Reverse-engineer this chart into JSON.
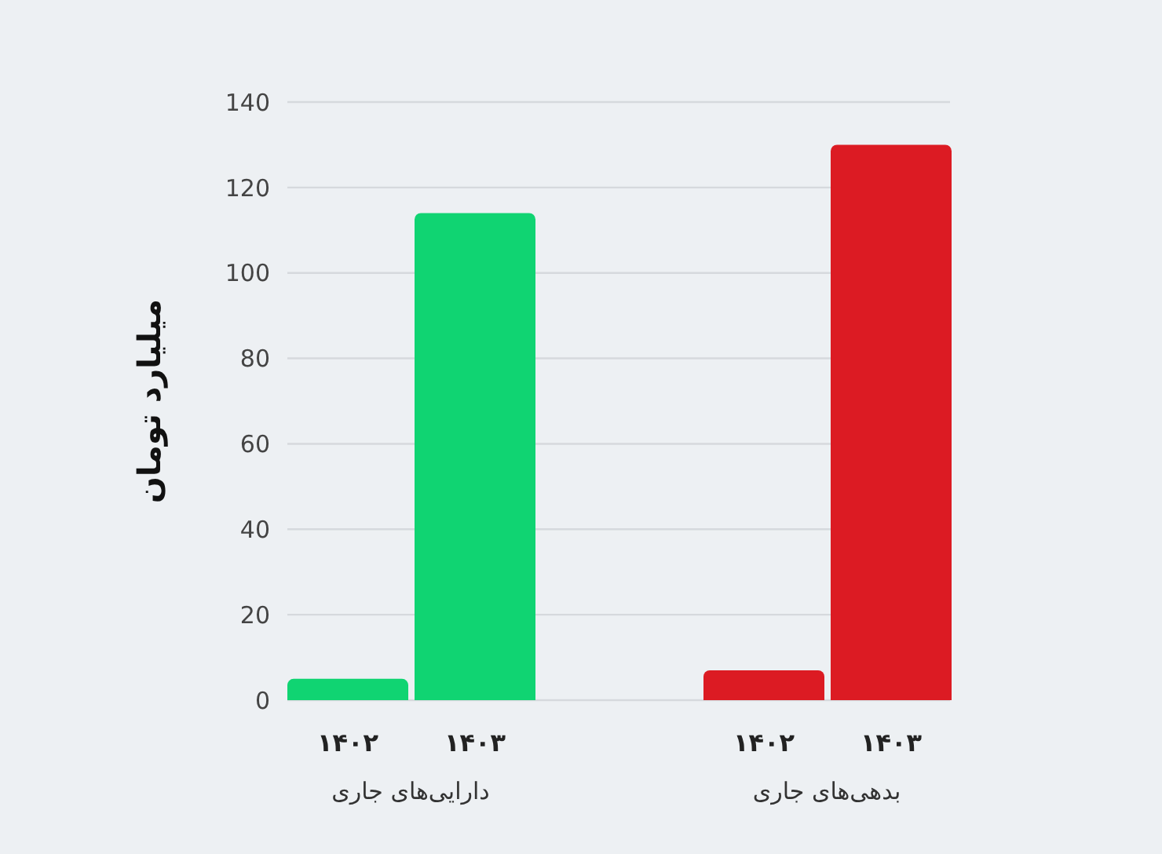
{
  "chart_data": {
    "type": "bar",
    "ylabel": "میلیارد تومان",
    "categories": [
      "دارایی‌های جاری",
      "بدهی‌های جاری"
    ],
    "series": [
      {
        "name": "۱۴۰۲",
        "colors": [
          "#10d472",
          "#dc1b23"
        ],
        "values": [
          5,
          7
        ]
      },
      {
        "name": "۱۴۰۳",
        "colors": [
          "#10d472",
          "#dc1b23"
        ],
        "values": [
          114,
          130
        ]
      }
    ],
    "ylim": [
      0,
      140
    ],
    "yticks": [
      0,
      20,
      40,
      60,
      80,
      100,
      120,
      140
    ],
    "grid": "y"
  }
}
